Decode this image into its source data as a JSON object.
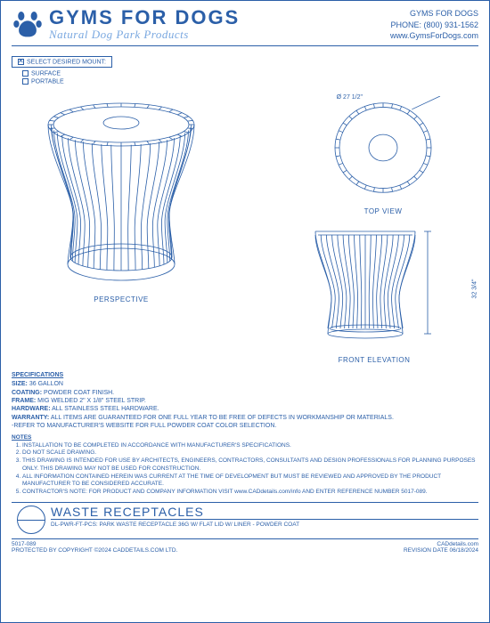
{
  "brand": {
    "title": "GYMS FOR DOGS",
    "subtitle": "Natural Dog Park Products",
    "color_primary": "#2b5fa8",
    "color_light": "#7aa8e0"
  },
  "contact": {
    "line1": "GYMS FOR DOGS",
    "line2": "PHONE: (800) 931-1562",
    "line3": "www.GymsForDogs.com"
  },
  "mount": {
    "heading": "SELECT DESIRED MOUNT:",
    "options": [
      "SURFACE",
      "PORTABLE"
    ]
  },
  "views": {
    "perspective": "PERSPECTIVE",
    "top": "TOP VIEW",
    "front": "FRONT ELEVATION",
    "dim_top": "Ø 27 1/2\"",
    "dim_front": "32 3/4\""
  },
  "specs": {
    "heading": "SPECIFICATIONS",
    "size_label": "SIZE:",
    "size": "36 GALLON",
    "coating_label": "COATING:",
    "coating": "POWDER COAT FINISH.",
    "frame_label": "FRAME:",
    "frame": "MIG WELDED 2\" X 1/8\" STEEL STRIP.",
    "hardware_label": "HARDWARE:",
    "hardware": "ALL STAINLESS STEEL HARDWARE.",
    "warranty_label": "WARRANTY:",
    "warranty": "ALL ITEMS ARE GUARANTEED FOR ONE FULL YEAR TO BE FREE OF DEFECTS IN WORKMANSHIP OR MATERIALS.",
    "refer": "-REFER TO MANUFACTURER'S WEBSITE FOR FULL POWDER COAT COLOR SELECTION."
  },
  "notes": {
    "heading": "NOTES",
    "items": [
      "INSTALLATION TO BE COMPLETED IN ACCORDANCE WITH MANUFACTURER'S SPECIFICATIONS.",
      "DO NOT SCALE DRAWING.",
      "THIS DRAWING IS INTENDED FOR USE BY ARCHITECTS, ENGINEERS, CONTRACTORS, CONSULTANTS AND DESIGN PROFESSIONALS FOR PLANNING PURPOSES ONLY.  THIS DRAWING MAY NOT BE USED FOR CONSTRUCTION.",
      "ALL INFORMATION CONTAINED HEREIN WAS CURRENT AT THE TIME OF DEVELOPMENT BUT MUST BE REVIEWED AND APPROVED BY THE PRODUCT MANUFACTURER TO BE CONSIDERED ACCURATE.",
      "CONTRACTOR'S NOTE: FOR PRODUCT AND COMPANY INFORMATION VISIT www.CADdetails.com/info AND ENTER REFERENCE NUMBER  5017-089."
    ]
  },
  "title_block": {
    "main": "WASTE RECEPTACLES",
    "sub": "DL-PWR-FT-PCS: PARK WASTE RECEPTACLE 36G W/ FLAT LID W/ LINER - POWDER COAT"
  },
  "footer": {
    "ref": "5017-089",
    "copyright": "PROTECTED BY COPYRIGHT ©2024 CADDETAILS.COM LTD.",
    "logo": "CADdetails.com",
    "revision": "REVISION DATE 06/18/2024"
  },
  "drawing_style": {
    "stroke": "#2b5fa8",
    "top_diameter": 108,
    "inner_diameter": 32,
    "fin_count": 32
  }
}
